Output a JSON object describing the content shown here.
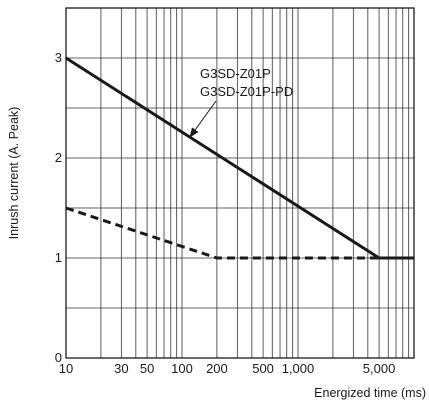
{
  "chart_data": {
    "type": "line",
    "title": "",
    "xlabel": "Energized time (ms)",
    "ylabel": "Inrush current (A. Peak)",
    "xscale": "log",
    "xlim": [
      10,
      10000
    ],
    "ylim": [
      0,
      3.5
    ],
    "grid": true,
    "x_tick_values": [
      10,
      30,
      50,
      100,
      200,
      500,
      1000,
      5000
    ],
    "x_tick_labels": [
      "10",
      "30",
      "50",
      "100",
      "200",
      "500",
      "1,000",
      "5,000"
    ],
    "y_tick_values": [
      0,
      1,
      2,
      3
    ],
    "y_tick_labels": [
      "0",
      "1",
      "2",
      "3"
    ],
    "series": [
      {
        "name": "",
        "style": "solid",
        "color": "#1a1a1a",
        "x": [
          10,
          5000,
          10000
        ],
        "y": [
          3.0,
          1.0,
          1.0
        ]
      },
      {
        "name": "",
        "style": "dashed",
        "color": "#1a1a1a",
        "x": [
          10,
          200,
          10000
        ],
        "y": [
          1.5,
          1.0,
          1.0
        ]
      }
    ],
    "annotations": [
      {
        "lines": [
          "G3SD-Z01P",
          "G3SD-Z01P-PD"
        ],
        "points_to_x": 400,
        "points_to_y": 2.4
      }
    ]
  }
}
